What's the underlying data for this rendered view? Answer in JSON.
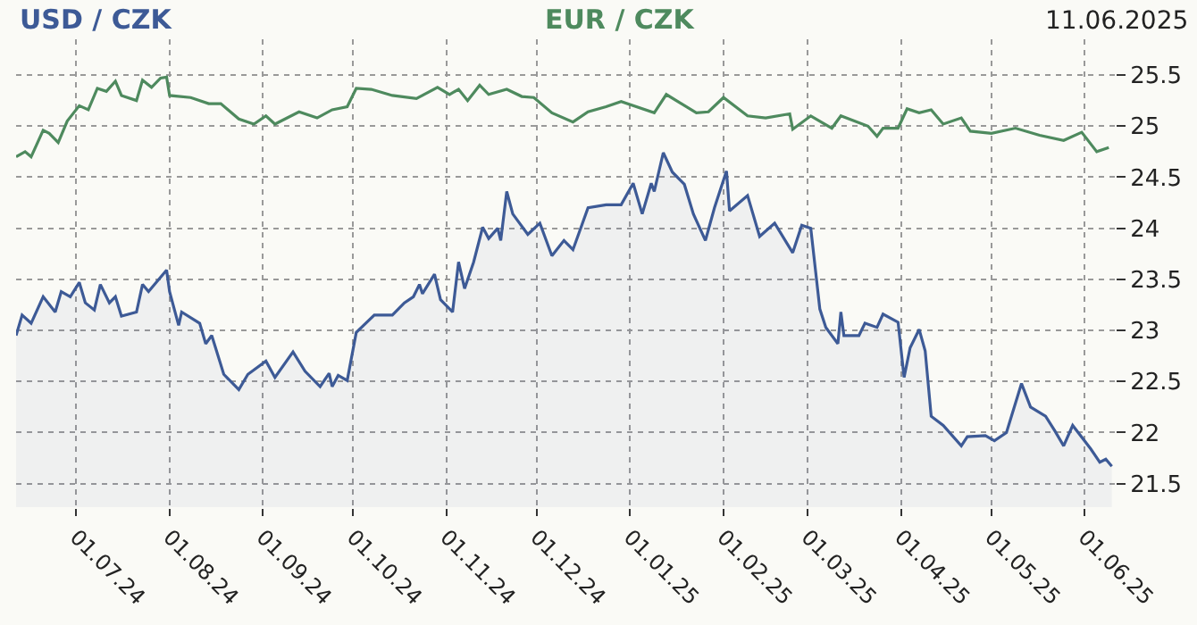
{
  "chart_data": {
    "type": "line",
    "annotations": [
      "11.06.2025"
    ],
    "xlim": [
      "2024-06-11",
      "2025-06-11"
    ],
    "xticks": [
      {
        "value": "2024-07-01",
        "label": "01.07.24"
      },
      {
        "value": "2024-08-01",
        "label": "01.08.24"
      },
      {
        "value": "2024-09-01",
        "label": "01.09.24"
      },
      {
        "value": "2024-10-01",
        "label": "01.10.24"
      },
      {
        "value": "2024-11-01",
        "label": "01.11.24"
      },
      {
        "value": "2024-12-01",
        "label": "01.12.24"
      },
      {
        "value": "2025-01-01",
        "label": "01.01.25"
      },
      {
        "value": "2025-02-01",
        "label": "01.02.25"
      },
      {
        "value": "2025-03-01",
        "label": "01.03.25"
      },
      {
        "value": "2025-04-01",
        "label": "01.04.25"
      },
      {
        "value": "2025-05-01",
        "label": "01.05.25"
      },
      {
        "value": "2025-06-01",
        "label": "01.06.25"
      }
    ],
    "ylim": [
      21.27,
      25.85
    ],
    "yticks": [
      21.5,
      22,
      22.5,
      23,
      23.5,
      24,
      24.5,
      25,
      25.5
    ],
    "grid": true,
    "legend": false,
    "series": [
      {
        "name": "USD / CZK",
        "type": "area",
        "color": "#3d5a96",
        "x": [
          "2024-06-11",
          "2024-06-13",
          "2024-06-16",
          "2024-06-20",
          "2024-06-24",
          "2024-06-26",
          "2024-06-29",
          "2024-07-02",
          "2024-07-04",
          "2024-07-07",
          "2024-07-09",
          "2024-07-12",
          "2024-07-14",
          "2024-07-16",
          "2024-07-21",
          "2024-07-23",
          "2024-07-25",
          "2024-07-31",
          "2024-08-01",
          "2024-08-04",
          "2024-08-05",
          "2024-08-11",
          "2024-08-13",
          "2024-08-15",
          "2024-08-19",
          "2024-08-24",
          "2024-08-27",
          "2024-09-02",
          "2024-09-05",
          "2024-09-11",
          "2024-09-15",
          "2024-09-20",
          "2024-09-23",
          "2024-09-24",
          "2024-09-26",
          "2024-09-29",
          "2024-10-02",
          "2024-10-08",
          "2024-10-14",
          "2024-10-18",
          "2024-10-21",
          "2024-10-23",
          "2024-10-24",
          "2024-10-28",
          "2024-10-30",
          "2024-11-03",
          "2024-11-05",
          "2024-11-07",
          "2024-11-10",
          "2024-11-13",
          "2024-11-15",
          "2024-11-18",
          "2024-11-19",
          "2024-11-21",
          "2024-11-23",
          "2024-11-28",
          "2024-12-02",
          "2024-12-06",
          "2024-12-10",
          "2024-12-13",
          "2024-12-18",
          "2024-12-24",
          "2024-12-29",
          "2025-01-02",
          "2025-01-05",
          "2025-01-08",
          "2025-01-09",
          "2025-01-12",
          "2025-01-15",
          "2025-01-19",
          "2025-01-22",
          "2025-01-26",
          "2025-01-29",
          "2025-02-02",
          "2025-02-03",
          "2025-02-09",
          "2025-02-13",
          "2025-02-18",
          "2025-02-24",
          "2025-02-27",
          "2025-03-02",
          "2025-03-05",
          "2025-03-07",
          "2025-03-11",
          "2025-03-12",
          "2025-03-13",
          "2025-03-18",
          "2025-03-20",
          "2025-03-24",
          "2025-03-26",
          "2025-03-31",
          "2025-04-02",
          "2025-04-04",
          "2025-04-07",
          "2025-04-09",
          "2025-04-11",
          "2025-04-15",
          "2025-04-21",
          "2025-04-23",
          "2025-04-29",
          "2025-05-02",
          "2025-05-06",
          "2025-05-11",
          "2025-05-14",
          "2025-05-19",
          "2025-05-22",
          "2025-05-25",
          "2025-05-28",
          "2025-06-03",
          "2025-06-06",
          "2025-06-08",
          "2025-06-10"
        ],
        "values": [
          22.95,
          23.15,
          23.07,
          23.33,
          23.18,
          23.38,
          23.33,
          23.47,
          23.27,
          23.2,
          23.45,
          23.27,
          23.33,
          23.14,
          23.18,
          23.45,
          23.38,
          23.59,
          23.38,
          23.05,
          23.18,
          23.07,
          22.87,
          22.95,
          22.57,
          22.42,
          22.57,
          22.7,
          22.54,
          22.79,
          22.6,
          22.45,
          22.58,
          22.45,
          22.56,
          22.51,
          22.98,
          23.15,
          23.15,
          23.27,
          23.33,
          23.45,
          23.36,
          23.55,
          23.3,
          23.18,
          23.67,
          23.41,
          23.67,
          24.01,
          23.9,
          24.0,
          23.88,
          24.36,
          24.14,
          23.94,
          24.05,
          23.73,
          23.88,
          23.79,
          24.2,
          24.23,
          24.23,
          24.44,
          24.14,
          24.44,
          24.36,
          24.74,
          24.55,
          24.43,
          24.14,
          23.88,
          24.2,
          24.56,
          24.17,
          24.32,
          23.92,
          24.05,
          23.76,
          24.03,
          24.0,
          23.21,
          23.03,
          22.87,
          23.18,
          22.95,
          22.95,
          23.07,
          23.03,
          23.16,
          23.08,
          22.54,
          22.83,
          23.01,
          22.8,
          22.16,
          22.07,
          21.87,
          21.96,
          21.97,
          21.92,
          22.0,
          22.48,
          22.25,
          22.16,
          22.02,
          21.87,
          22.07,
          21.84,
          21.71,
          21.74,
          21.67
        ]
      },
      {
        "name": "EUR / CZK",
        "color": "#4e8a5e",
        "x": [
          "2024-06-11",
          "2024-06-14",
          "2024-06-16",
          "2024-06-20",
          "2024-06-22",
          "2024-06-25",
          "2024-06-28",
          "2024-07-02",
          "2024-07-05",
          "2024-07-08",
          "2024-07-11",
          "2024-07-14",
          "2024-07-16",
          "2024-07-21",
          "2024-07-23",
          "2024-07-26",
          "2024-07-29",
          "2024-07-31",
          "2024-08-01",
          "2024-08-08",
          "2024-08-14",
          "2024-08-18",
          "2024-08-24",
          "2024-08-29",
          "2024-09-02",
          "2024-09-05",
          "2024-09-13",
          "2024-09-19",
          "2024-09-24",
          "2024-09-29",
          "2024-10-02",
          "2024-10-07",
          "2024-10-14",
          "2024-10-22",
          "2024-10-29",
          "2024-11-02",
          "2024-11-05",
          "2024-11-08",
          "2024-11-12",
          "2024-11-15",
          "2024-11-21",
          "2024-11-26",
          "2024-11-30",
          "2024-12-06",
          "2024-12-13",
          "2024-12-18",
          "2024-12-24",
          "2024-12-29",
          "2025-01-09",
          "2025-01-13",
          "2025-01-23",
          "2025-01-27",
          "2025-02-01",
          "2025-02-09",
          "2025-02-15",
          "2025-02-23",
          "2025-02-24",
          "2025-03-02",
          "2025-03-09",
          "2025-03-12",
          "2025-03-21",
          "2025-03-24",
          "2025-03-26",
          "2025-03-31",
          "2025-04-03",
          "2025-04-07",
          "2025-04-11",
          "2025-04-15",
          "2025-04-21",
          "2025-04-24",
          "2025-05-01",
          "2025-05-09",
          "2025-05-17",
          "2025-05-25",
          "2025-05-31",
          "2025-06-05",
          "2025-06-09"
        ],
        "values": [
          24.7,
          24.75,
          24.7,
          24.96,
          24.93,
          24.84,
          25.05,
          25.2,
          25.16,
          25.37,
          25.34,
          25.44,
          25.3,
          25.25,
          25.45,
          25.38,
          25.47,
          25.48,
          25.3,
          25.28,
          25.22,
          25.22,
          25.07,
          25.02,
          25.1,
          25.02,
          25.14,
          25.08,
          25.16,
          25.19,
          25.37,
          25.36,
          25.3,
          25.27,
          25.38,
          25.31,
          25.36,
          25.25,
          25.4,
          25.31,
          25.36,
          25.29,
          25.28,
          25.13,
          25.04,
          25.14,
          25.19,
          25.24,
          25.13,
          25.31,
          25.13,
          25.14,
          25.28,
          25.1,
          25.08,
          25.12,
          24.97,
          25.1,
          24.98,
          25.1,
          25.0,
          24.9,
          24.98,
          24.98,
          25.17,
          25.13,
          25.16,
          25.02,
          25.08,
          24.95,
          24.93,
          24.98,
          24.91,
          24.86,
          24.94,
          24.75,
          24.79
        ]
      }
    ]
  }
}
